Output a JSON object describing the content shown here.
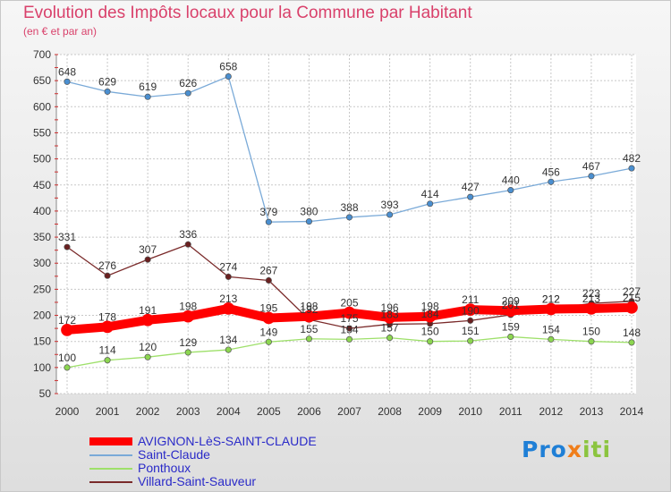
{
  "chart_data": {
    "type": "line",
    "title": "Evolution des Impôts locaux pour la Commune par Habitant",
    "subtitle": "(en € et par an)",
    "x": [
      2000,
      2001,
      2002,
      2003,
      2004,
      2005,
      2006,
      2007,
      2008,
      2009,
      2010,
      2011,
      2012,
      2013,
      2014
    ],
    "ylim": [
      50,
      700
    ],
    "yticks": [
      50,
      100,
      150,
      200,
      250,
      300,
      350,
      400,
      450,
      500,
      550,
      600,
      650,
      700
    ],
    "grid": true,
    "legend_position": "bottom-left",
    "series": [
      {
        "name": "AVIGNON-LèS-SAINT-CLAUDE",
        "color": "#ff0000",
        "values": [
          172,
          178,
          191,
          198,
          213,
          195,
          198,
          205,
          196,
          198,
          211,
          209,
          212,
          213,
          215
        ]
      },
      {
        "name": "Saint-Claude",
        "color": "#7aaad8",
        "values": [
          648,
          629,
          619,
          626,
          658,
          379,
          380,
          388,
          393,
          414,
          427,
          440,
          456,
          467,
          482
        ]
      },
      {
        "name": "Ponthoux",
        "color": "#9ee06a",
        "values": [
          100,
          114,
          120,
          129,
          134,
          149,
          155,
          154,
          157,
          150,
          151,
          159,
          154,
          150,
          148
        ]
      },
      {
        "name": "Villard-Saint-Sauveur",
        "color": "#7a2a2a",
        "values": [
          331,
          276,
          307,
          336,
          274,
          267,
          192,
          175,
          183,
          184,
          190,
          201,
          212,
          223,
          227
        ]
      }
    ],
    "data_labels": [
      [
        172,
        178,
        191,
        198,
        213,
        195,
        198,
        205,
        196,
        198,
        211,
        209,
        212,
        213,
        215
      ],
      [
        648,
        629,
        619,
        626,
        658,
        379,
        380,
        388,
        393,
        414,
        427,
        440,
        456,
        467,
        482
      ],
      [
        100,
        114,
        120,
        129,
        134,
        149,
        155,
        154,
        157,
        150,
        151,
        159,
        154,
        150,
        148
      ],
      [
        331,
        276,
        307,
        336,
        274,
        267,
        192,
        175,
        183,
        184,
        190,
        201,
        212,
        223,
        227
      ]
    ]
  },
  "logo": {
    "p1": "Pro",
    "p2": "x",
    "p3": "iti"
  },
  "colors": {
    "title": "#d9416b",
    "legend_text": "#2a2ac8",
    "grid": "#c8c8c8"
  }
}
